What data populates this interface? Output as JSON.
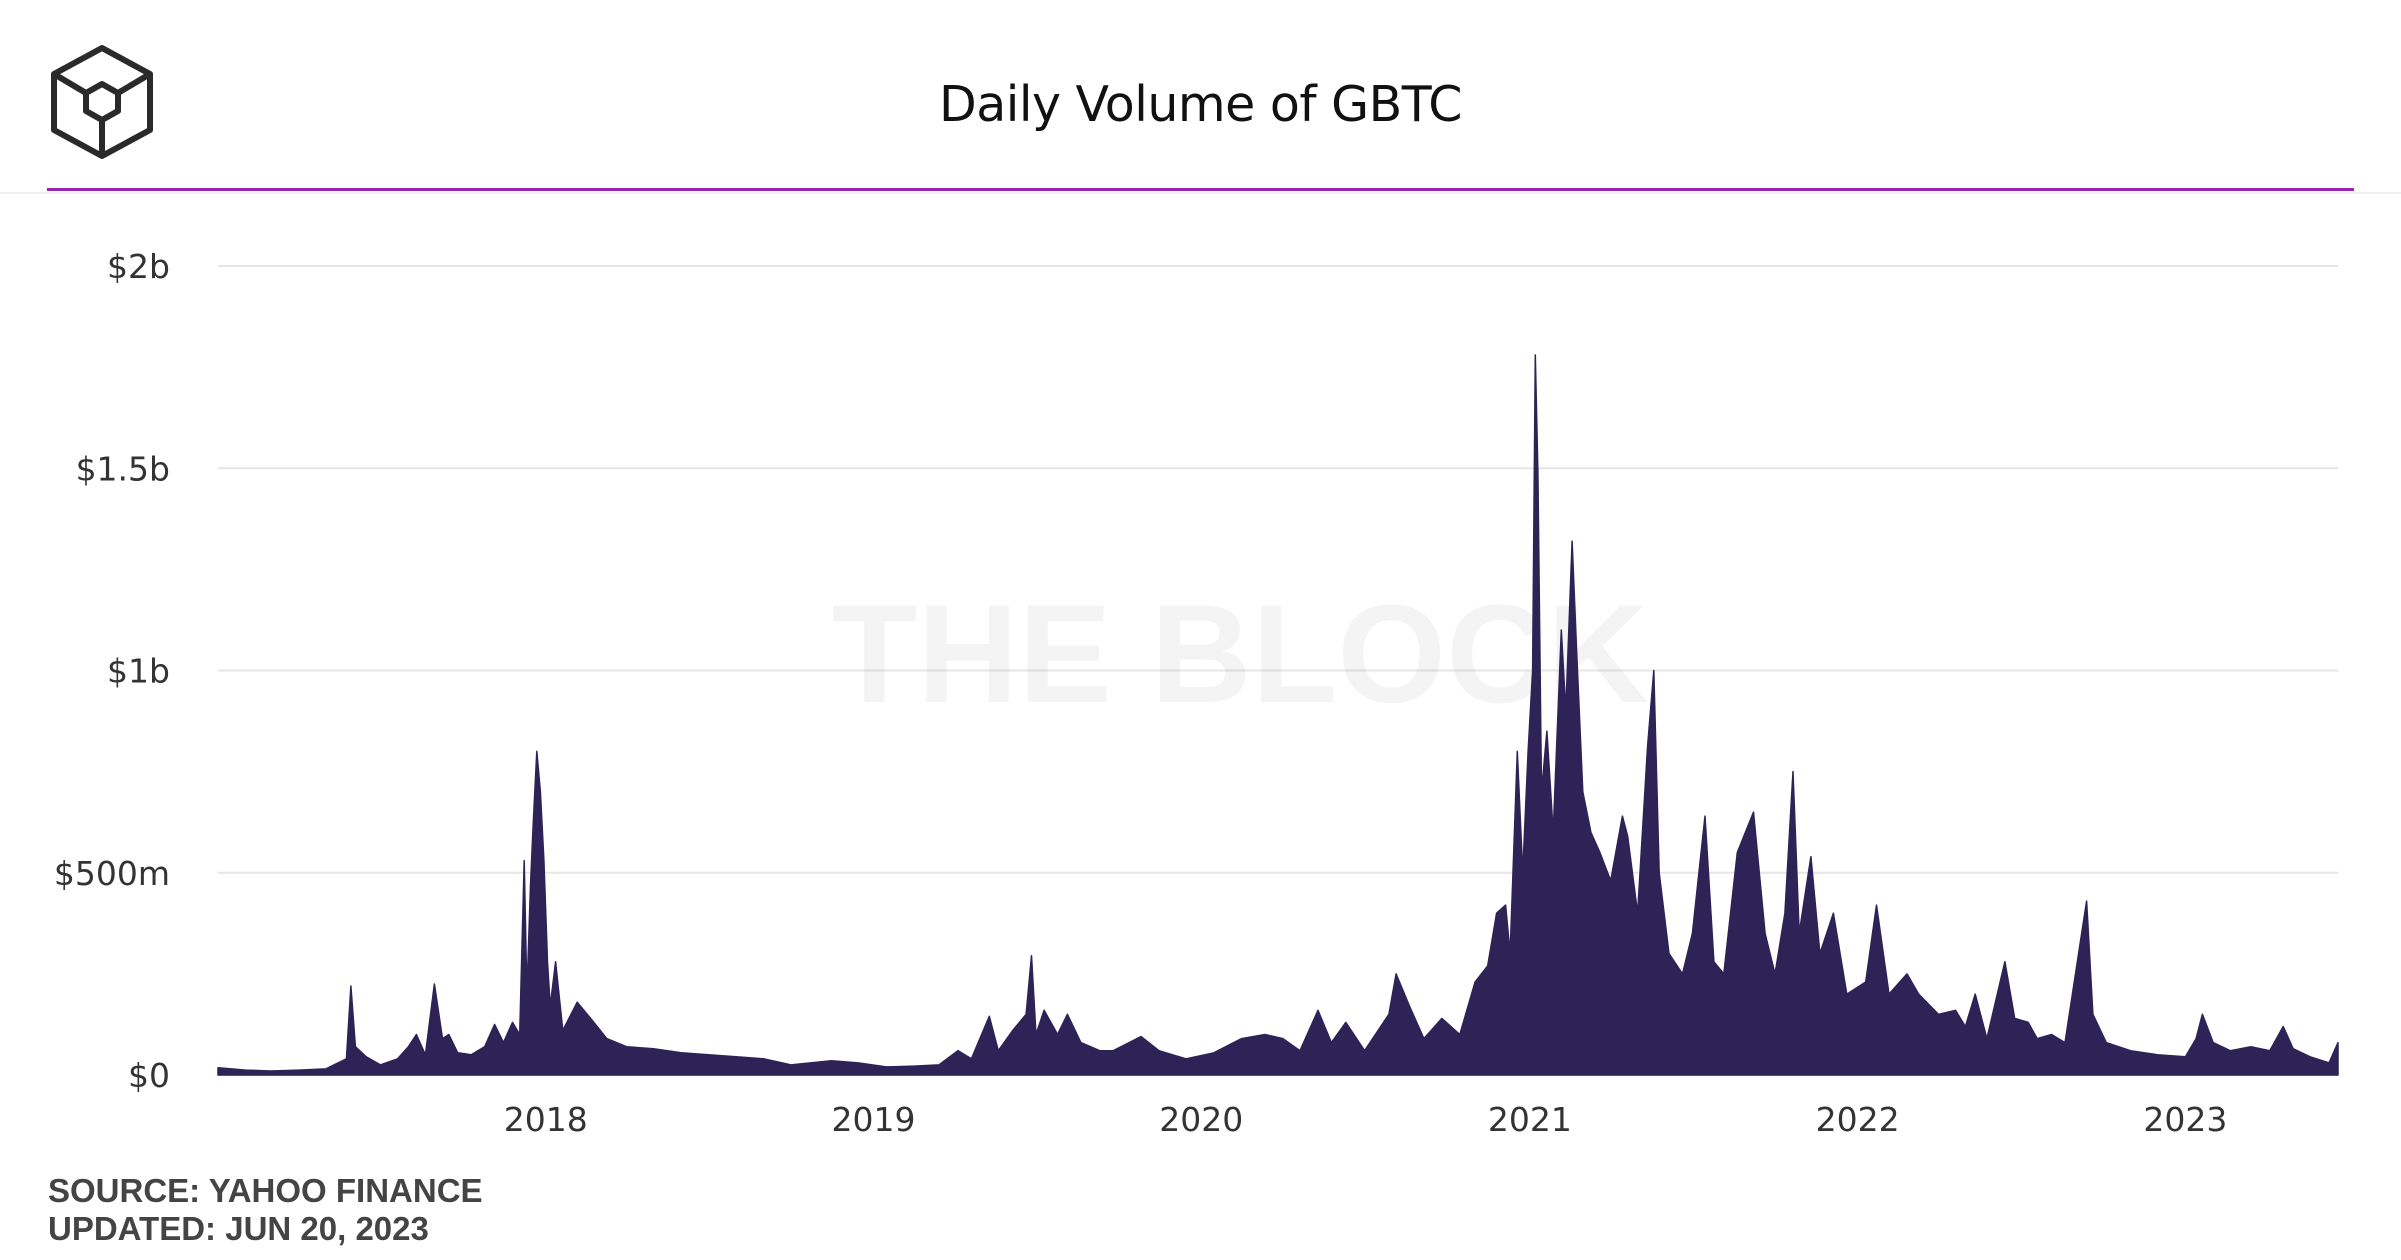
{
  "header": {
    "title": "Daily Volume of GBTC",
    "logo_icon": "the-block-cube-logo-icon",
    "accent_color": "#9b27af"
  },
  "footer": {
    "source": "SOURCE: YAHOO FINANCE",
    "updated": "UPDATED: JUN 20, 2023"
  },
  "chart_data": {
    "type": "area",
    "title": "Daily Volume of GBTC",
    "xlabel": "",
    "ylabel": "",
    "watermark": "THE BLOCK",
    "color": "#2d2356",
    "grid": true,
    "y_unit": "USD",
    "ylim": [
      0,
      2000000000
    ],
    "xlim": [
      "2017-01-01",
      "2023-06-20"
    ],
    "y_ticks": [
      {
        "value": 0,
        "label": "$0"
      },
      {
        "value": 500000000,
        "label": "$500m"
      },
      {
        "value": 1000000000,
        "label": "$1b"
      },
      {
        "value": 1500000000,
        "label": "$1.5b"
      },
      {
        "value": 2000000000,
        "label": "$2b"
      }
    ],
    "x_ticks": [
      {
        "value": "2018-01-01",
        "label": "2018"
      },
      {
        "value": "2019-01-01",
        "label": "2019"
      },
      {
        "value": "2020-01-01",
        "label": "2020"
      },
      {
        "value": "2021-01-01",
        "label": "2021"
      },
      {
        "value": "2022-01-01",
        "label": "2022"
      },
      {
        "value": "2023-01-01",
        "label": "2023"
      }
    ],
    "series": [
      {
        "points": [
          [
            "2017-01-01",
            18000000
          ],
          [
            "2017-02-01",
            12000000
          ],
          [
            "2017-03-01",
            10000000
          ],
          [
            "2017-04-01",
            12000000
          ],
          [
            "2017-05-01",
            15000000
          ],
          [
            "2017-05-24",
            40000000
          ],
          [
            "2017-05-29",
            220000000
          ],
          [
            "2017-06-03",
            70000000
          ],
          [
            "2017-06-15",
            45000000
          ],
          [
            "2017-07-01",
            25000000
          ],
          [
            "2017-07-20",
            40000000
          ],
          [
            "2017-08-01",
            70000000
          ],
          [
            "2017-08-10",
            100000000
          ],
          [
            "2017-08-20",
            50000000
          ],
          [
            "2017-08-30",
            225000000
          ],
          [
            "2017-09-08",
            90000000
          ],
          [
            "2017-09-15",
            100000000
          ],
          [
            "2017-09-25",
            55000000
          ],
          [
            "2017-10-10",
            50000000
          ],
          [
            "2017-10-25",
            70000000
          ],
          [
            "2017-11-05",
            125000000
          ],
          [
            "2017-11-15",
            80000000
          ],
          [
            "2017-11-25",
            130000000
          ],
          [
            "2017-12-03",
            100000000
          ],
          [
            "2017-12-08",
            530000000
          ],
          [
            "2017-12-11",
            200000000
          ],
          [
            "2017-12-15",
            470000000
          ],
          [
            "2017-12-18",
            620000000
          ],
          [
            "2017-12-22",
            800000000
          ],
          [
            "2017-12-26",
            700000000
          ],
          [
            "2017-12-30",
            530000000
          ],
          [
            "2018-01-03",
            280000000
          ],
          [
            "2018-01-06",
            170000000
          ],
          [
            "2018-01-12",
            280000000
          ],
          [
            "2018-01-20",
            110000000
          ],
          [
            "2018-02-05",
            180000000
          ],
          [
            "2018-02-20",
            140000000
          ],
          [
            "2018-03-10",
            90000000
          ],
          [
            "2018-04-01",
            70000000
          ],
          [
            "2018-05-01",
            65000000
          ],
          [
            "2018-06-01",
            55000000
          ],
          [
            "2018-07-01",
            50000000
          ],
          [
            "2018-08-01",
            45000000
          ],
          [
            "2018-09-01",
            40000000
          ],
          [
            "2018-10-01",
            25000000
          ],
          [
            "2018-11-15",
            35000000
          ],
          [
            "2018-12-15",
            30000000
          ],
          [
            "2019-01-15",
            20000000
          ],
          [
            "2019-02-15",
            22000000
          ],
          [
            "2019-03-15",
            25000000
          ],
          [
            "2019-04-05",
            60000000
          ],
          [
            "2019-04-20",
            40000000
          ],
          [
            "2019-05-10",
            145000000
          ],
          [
            "2019-05-20",
            60000000
          ],
          [
            "2019-06-05",
            110000000
          ],
          [
            "2019-06-20",
            150000000
          ],
          [
            "2019-06-26",
            295000000
          ],
          [
            "2019-07-01",
            100000000
          ],
          [
            "2019-07-10",
            160000000
          ],
          [
            "2019-07-25",
            100000000
          ],
          [
            "2019-08-05",
            150000000
          ],
          [
            "2019-08-20",
            80000000
          ],
          [
            "2019-09-10",
            60000000
          ],
          [
            "2019-09-25",
            60000000
          ],
          [
            "2019-10-26",
            95000000
          ],
          [
            "2019-11-15",
            60000000
          ],
          [
            "2019-12-15",
            40000000
          ],
          [
            "2020-01-15",
            55000000
          ],
          [
            "2020-02-15",
            90000000
          ],
          [
            "2020-03-12",
            100000000
          ],
          [
            "2020-04-01",
            90000000
          ],
          [
            "2020-04-20",
            60000000
          ],
          [
            "2020-05-10",
            160000000
          ],
          [
            "2020-05-25",
            80000000
          ],
          [
            "2020-06-10",
            130000000
          ],
          [
            "2020-07-01",
            60000000
          ],
          [
            "2020-07-28",
            150000000
          ],
          [
            "2020-08-05",
            250000000
          ],
          [
            "2020-08-20",
            170000000
          ],
          [
            "2020-09-05",
            90000000
          ],
          [
            "2020-09-25",
            140000000
          ],
          [
            "2020-10-15",
            100000000
          ],
          [
            "2020-11-01",
            230000000
          ],
          [
            "2020-11-15",
            270000000
          ],
          [
            "2020-11-25",
            400000000
          ],
          [
            "2020-12-05",
            420000000
          ],
          [
            "2020-12-10",
            300000000
          ],
          [
            "2020-12-18",
            800000000
          ],
          [
            "2020-12-24",
            500000000
          ],
          [
            "2020-12-30",
            800000000
          ],
          [
            "2021-01-04",
            1000000000
          ],
          [
            "2021-01-07",
            1780000000
          ],
          [
            "2021-01-10",
            1490000000
          ],
          [
            "2021-01-14",
            700000000
          ],
          [
            "2021-01-20",
            850000000
          ],
          [
            "2021-01-27",
            600000000
          ],
          [
            "2021-02-05",
            1100000000
          ],
          [
            "2021-02-10",
            900000000
          ],
          [
            "2021-02-17",
            1320000000
          ],
          [
            "2021-02-22",
            1050000000
          ],
          [
            "2021-03-01",
            700000000
          ],
          [
            "2021-03-10",
            600000000
          ],
          [
            "2021-03-20",
            550000000
          ],
          [
            "2021-04-01",
            480000000
          ],
          [
            "2021-04-14",
            640000000
          ],
          [
            "2021-04-20",
            590000000
          ],
          [
            "2021-05-01",
            400000000
          ],
          [
            "2021-05-12",
            810000000
          ],
          [
            "2021-05-19",
            1000000000
          ],
          [
            "2021-05-25",
            500000000
          ],
          [
            "2021-06-05",
            300000000
          ],
          [
            "2021-06-20",
            250000000
          ],
          [
            "2021-07-01",
            350000000
          ],
          [
            "2021-07-15",
            640000000
          ],
          [
            "2021-07-25",
            280000000
          ],
          [
            "2021-08-05",
            250000000
          ],
          [
            "2021-08-20",
            550000000
          ],
          [
            "2021-09-07",
            650000000
          ],
          [
            "2021-09-20",
            350000000
          ],
          [
            "2021-10-01",
            250000000
          ],
          [
            "2021-10-12",
            400000000
          ],
          [
            "2021-10-21",
            750000000
          ],
          [
            "2021-10-28",
            350000000
          ],
          [
            "2021-11-10",
            540000000
          ],
          [
            "2021-11-20",
            300000000
          ],
          [
            "2021-12-05",
            400000000
          ],
          [
            "2021-12-20",
            200000000
          ],
          [
            "2022-01-10",
            230000000
          ],
          [
            "2022-01-22",
            420000000
          ],
          [
            "2022-02-05",
            200000000
          ],
          [
            "2022-02-25",
            250000000
          ],
          [
            "2022-03-10",
            200000000
          ],
          [
            "2022-04-01",
            150000000
          ],
          [
            "2022-04-20",
            160000000
          ],
          [
            "2022-05-01",
            120000000
          ],
          [
            "2022-05-12",
            200000000
          ],
          [
            "2022-05-25",
            90000000
          ],
          [
            "2022-06-14",
            280000000
          ],
          [
            "2022-06-25",
            140000000
          ],
          [
            "2022-07-10",
            130000000
          ],
          [
            "2022-07-20",
            90000000
          ],
          [
            "2022-08-05",
            100000000
          ],
          [
            "2022-08-20",
            80000000
          ],
          [
            "2022-09-13",
            430000000
          ],
          [
            "2022-09-20",
            150000000
          ],
          [
            "2022-10-05",
            80000000
          ],
          [
            "2022-11-01",
            60000000
          ],
          [
            "2022-12-01",
            50000000
          ],
          [
            "2023-01-01",
            45000000
          ],
          [
            "2023-01-13",
            90000000
          ],
          [
            "2023-01-20",
            150000000
          ],
          [
            "2023-02-01",
            80000000
          ],
          [
            "2023-02-20",
            60000000
          ],
          [
            "2023-03-15",
            70000000
          ],
          [
            "2023-04-05",
            60000000
          ],
          [
            "2023-04-20",
            120000000
          ],
          [
            "2023-05-01",
            65000000
          ],
          [
            "2023-05-20",
            45000000
          ],
          [
            "2023-06-10",
            30000000
          ],
          [
            "2023-06-20",
            80000000
          ]
        ]
      }
    ]
  }
}
